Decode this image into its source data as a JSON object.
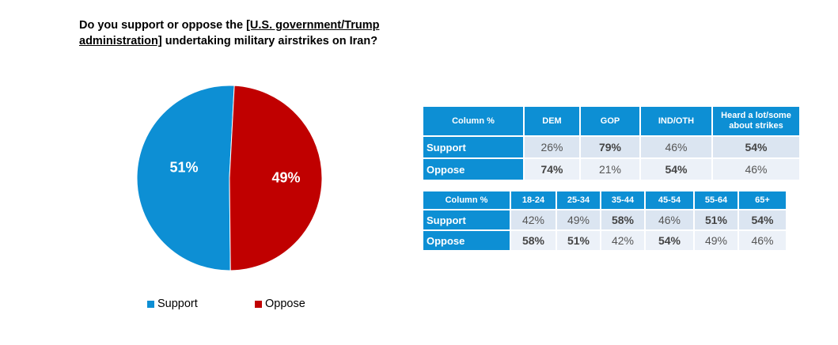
{
  "title": {
    "line1_pre": "Do you support or oppose the ",
    "line1_ul": "[U.S. government/Trump",
    "line2_ul": "administration]",
    "line2_post": " undertaking military airstrikes on Iran?"
  },
  "chart_data": {
    "type": "pie",
    "labels": [
      "Support",
      "Oppose"
    ],
    "values": [
      51,
      49
    ],
    "value_labels": [
      "51%",
      "49%"
    ],
    "colors": [
      "#0d8fd4",
      "#c00000"
    ],
    "legend_position": "bottom"
  },
  "table1": {
    "headers": [
      "Column %",
      "DEM",
      "GOP",
      "IND/OTH",
      "Heard a lot/some about strikes"
    ],
    "rows": [
      {
        "label": "Support",
        "values": [
          "26%",
          "79%",
          "46%",
          "54%"
        ],
        "bold": [
          false,
          true,
          false,
          true
        ]
      },
      {
        "label": "Oppose",
        "values": [
          "74%",
          "21%",
          "54%",
          "46%"
        ],
        "bold": [
          true,
          false,
          true,
          false
        ]
      }
    ]
  },
  "table2": {
    "headers": [
      "Column %",
      "18-24",
      "25-34",
      "35-44",
      "45-54",
      "55-64",
      "65+"
    ],
    "rows": [
      {
        "label": "Support",
        "values": [
          "42%",
          "49%",
          "58%",
          "46%",
          "51%",
          "54%"
        ],
        "bold": [
          false,
          false,
          true,
          false,
          true,
          true
        ]
      },
      {
        "label": "Oppose",
        "values": [
          "58%",
          "51%",
          "42%",
          "54%",
          "49%",
          "46%"
        ],
        "bold": [
          true,
          true,
          false,
          true,
          false,
          false
        ]
      }
    ]
  }
}
